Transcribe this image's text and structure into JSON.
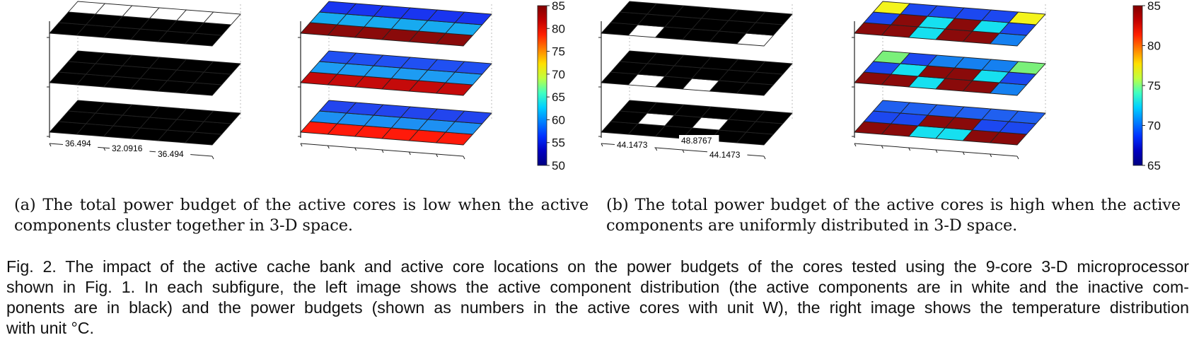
{
  "figure": {
    "panels": [
      {
        "id": "a",
        "caption_lines": [
          "(a) The total power budget of the active cores is low when the active",
          "components cluster together in 3-D space."
        ],
        "distribution_layers": [
          [
            "WWWWWW",
            "BBBBBB",
            "BBBBBB"
          ],
          [
            "BBBBBB",
            "BBBBBB",
            "BBBBBB"
          ],
          [
            "BBBBBB",
            "BBBBBB",
            "BBBBBB"
          ]
        ],
        "power_labels": [
          "36.494",
          "32.0916",
          "36.494"
        ],
        "temperature_layers": [
          [
            [
              "#8a0a0a",
              "#8a0a0a",
              "#8a0a0a",
              "#8a0a0a",
              "#8a0a0a",
              "#8a0a0a"
            ],
            [
              "#17aaf0",
              "#17aaf0",
              "#17aaf0",
              "#17aaf0",
              "#17aaf0",
              "#17aaf0"
            ],
            [
              "#1935f0",
              "#1935f0",
              "#1935f0",
              "#1935f0",
              "#1935f0",
              "#1935f0"
            ]
          ],
          [
            [
              "#c50a0a",
              "#c50a0a",
              "#c50a0a",
              "#c50a0a",
              "#c50a0a",
              "#c50a0a"
            ],
            [
              "#1d9cf3",
              "#1d9cf3",
              "#1d9cf3",
              "#1d9cf3",
              "#1d9cf3",
              "#1d9cf3"
            ],
            [
              "#2050f2",
              "#2050f2",
              "#2050f2",
              "#2050f2",
              "#2050f2",
              "#2050f2"
            ]
          ],
          [
            [
              "#ff1a0a",
              "#ff1a0a",
              "#ff1a0a",
              "#ff1a0a",
              "#ff1a0a",
              "#ff1a0a"
            ],
            [
              "#1d90f3",
              "#1d90f3",
              "#1d90f3",
              "#1d90f3",
              "#1d90f3",
              "#1d90f3"
            ],
            [
              "#2245ee",
              "#2245ee",
              "#2245ee",
              "#2245ee",
              "#2245ee",
              "#2245ee"
            ]
          ]
        ],
        "colorbar": {
          "ticks": [
            "85",
            "80",
            "75",
            "70",
            "65",
            "60",
            "55",
            "50"
          ]
        }
      },
      {
        "id": "b",
        "caption_lines": [
          "(b) The total power budget of the active cores is high when the active",
          "components are uniformly distributed in 3-D space."
        ],
        "distribution_layers": [
          [
            "BBBBBB",
            "BBBBBB",
            "BWBBBW"
          ],
          [
            "BBBBBB",
            "BBBBBB",
            "BWBWBB"
          ],
          [
            "BBBBBB",
            "BWBWBB",
            "BBBBBB"
          ]
        ],
        "power_labels": [
          "44.1473",
          "48.8767",
          "44.1473"
        ],
        "temperature_layers": [
          [
            [
              "#8a0a0a",
              "#8a0a0a",
              "#16e0f0",
              "#8a0a0a",
              "#8a0a0a",
              "#1580f0"
            ],
            [
              "#1c48f0",
              "#8a0a0a",
              "#16e0f0",
              "#8a0a0a",
              "#16e0f0",
              "#1c48f0"
            ],
            [
              "#f4f41c",
              "#1c48f0",
              "#1c48f0",
              "#1c48f0",
              "#1c48f0",
              "#f4f41c"
            ]
          ],
          [
            [
              "#8a0a0a",
              "#8a0a0a",
              "#16e0f0",
              "#8a0a0a",
              "#8a0a0a",
              "#1580f0"
            ],
            [
              "#1c48f0",
              "#16e0f0",
              "#8a0a0a",
              "#8a0a0a",
              "#16e0f0",
              "#1c48f0"
            ],
            [
              "#7af07a",
              "#1c48f0",
              "#1580f0",
              "#1580f0",
              "#1580f0",
              "#7af07a"
            ]
          ],
          [
            [
              "#8a0a0a",
              "#8a0a0a",
              "#16e0f0",
              "#16e0f0",
              "#8a0a0a",
              "#8a0a0a"
            ],
            [
              "#1c48f0",
              "#1c48f0",
              "#8a0a0a",
              "#8a0a0a",
              "#1c48f0",
              "#1c48f0"
            ],
            [
              "#2060f0",
              "#2060f0",
              "#2060f0",
              "#2060f0",
              "#2060f0",
              "#2060f0"
            ]
          ]
        ],
        "colorbar": {
          "ticks": [
            "85",
            "80",
            "75",
            "70",
            "65"
          ]
        }
      }
    ],
    "caption_lines": [
      "Fig. 2. The impact of the active cache bank and active core locations on the power budgets of the cores tested using the 9-core 3-D microprocessor",
      "shown in Fig. 1. In each subfigure, the left image shows the active component distribution (the active components are in white and the inactive com-",
      "ponents are in black) and the power budgets (shown as numbers in the active cores with unit W), the right image shows the temperature distribution",
      "with unit °C."
    ]
  }
}
